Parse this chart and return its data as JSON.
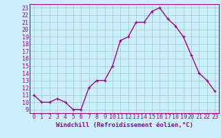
{
  "x": [
    0,
    1,
    2,
    3,
    4,
    5,
    6,
    7,
    8,
    9,
    10,
    11,
    12,
    13,
    14,
    15,
    16,
    17,
    18,
    19,
    20,
    21,
    22,
    23
  ],
  "y": [
    11,
    10,
    10,
    10.5,
    10,
    9,
    9,
    12,
    13,
    13,
    15,
    18.5,
    19,
    21,
    21,
    22.5,
    23,
    21.5,
    20.5,
    19,
    16.5,
    14,
    13,
    11.5
  ],
  "color": "#990099",
  "bg_color": "#cceeff",
  "grid_color": "#99cccc",
  "xlabel": "Windchill (Refroidissement éolien,°C)",
  "xlabel_fontsize": 6.5,
  "tick_fontsize": 6,
  "xlim": [
    -0.5,
    23.5
  ],
  "ylim": [
    8.5,
    23.5
  ],
  "yticks": [
    9,
    10,
    11,
    12,
    13,
    14,
    15,
    16,
    17,
    18,
    19,
    20,
    21,
    22,
    23
  ],
  "xticks": [
    0,
    1,
    2,
    3,
    4,
    5,
    6,
    7,
    8,
    9,
    10,
    11,
    12,
    13,
    14,
    15,
    16,
    17,
    18,
    19,
    20,
    21,
    22,
    23
  ],
  "marker": "+",
  "marker_size": 3.5,
  "line_width": 1.0
}
